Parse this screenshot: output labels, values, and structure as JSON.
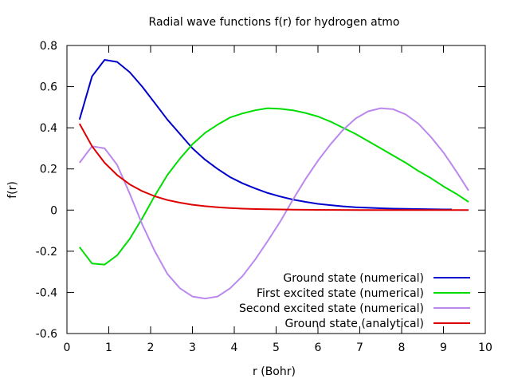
{
  "chart_data": {
    "type": "line",
    "title": "Radial wave functions f(r) for hydrogen atmo",
    "xlabel": "r (Bohr)",
    "ylabel": "f(r)",
    "xlim": [
      0,
      10
    ],
    "ylim": [
      -0.6,
      0.8
    ],
    "x_ticks": [
      "0",
      "1",
      "2",
      "3",
      "4",
      "5",
      "6",
      "7",
      "8",
      "9",
      "10"
    ],
    "y_ticks": [
      "-0.6",
      "-0.4",
      "-0.2",
      "0",
      "0.2",
      "0.4",
      "0.6",
      "0.8"
    ],
    "grid": false,
    "legend_position": "bottom-right",
    "series": [
      {
        "name": "Ground state (numerical)",
        "color": "#0000cc",
        "x": [
          0.3,
          0.6,
          0.9,
          1.2,
          1.5,
          1.8,
          2.1,
          2.4,
          2.7,
          3.0,
          3.3,
          3.6,
          3.9,
          4.2,
          4.5,
          4.8,
          5.1,
          5.4,
          5.7,
          6.0,
          6.3,
          6.6,
          6.9,
          7.2,
          7.5,
          7.8,
          8.1,
          8.4,
          8.7,
          9.0,
          9.2
        ],
        "y": [
          0.44,
          0.65,
          0.73,
          0.72,
          0.67,
          0.6,
          0.52,
          0.44,
          0.37,
          0.3,
          0.245,
          0.2,
          0.16,
          0.13,
          0.105,
          0.083,
          0.066,
          0.051,
          0.04,
          0.03,
          0.024,
          0.018,
          0.014,
          0.011,
          0.009,
          0.007,
          0.006,
          0.005,
          0.004,
          0.003,
          0.003
        ]
      },
      {
        "name": "First excited state (numerical)",
        "color": "#00dd00",
        "x": [
          0.3,
          0.6,
          0.9,
          1.2,
          1.5,
          1.8,
          2.1,
          2.4,
          2.7,
          3.0,
          3.3,
          3.6,
          3.9,
          4.2,
          4.5,
          4.8,
          5.1,
          5.4,
          5.7,
          6.0,
          6.3,
          6.6,
          6.9,
          7.2,
          7.5,
          7.8,
          8.1,
          8.4,
          8.7,
          9.0,
          9.3,
          9.6
        ],
        "y": [
          -0.18,
          -0.26,
          -0.265,
          -0.22,
          -0.14,
          -0.04,
          0.07,
          0.17,
          0.25,
          0.32,
          0.375,
          0.415,
          0.45,
          0.47,
          0.485,
          0.495,
          0.492,
          0.485,
          0.472,
          0.455,
          0.43,
          0.4,
          0.37,
          0.335,
          0.3,
          0.265,
          0.23,
          0.19,
          0.155,
          0.115,
          0.08,
          0.04
        ]
      },
      {
        "name": "Second excited state (numerical)",
        "color": "#bb88ee",
        "x": [
          0.3,
          0.6,
          0.9,
          1.2,
          1.5,
          1.8,
          2.1,
          2.4,
          2.7,
          3.0,
          3.3,
          3.6,
          3.9,
          4.2,
          4.5,
          4.8,
          5.1,
          5.4,
          5.7,
          6.0,
          6.3,
          6.6,
          6.9,
          7.2,
          7.5,
          7.8,
          8.1,
          8.4,
          8.7,
          9.0,
          9.3,
          9.6
        ],
        "y": [
          0.23,
          0.31,
          0.3,
          0.22,
          0.08,
          -0.07,
          -0.2,
          -0.31,
          -0.38,
          -0.42,
          -0.43,
          -0.42,
          -0.38,
          -0.32,
          -0.24,
          -0.15,
          -0.055,
          0.05,
          0.15,
          0.24,
          0.32,
          0.39,
          0.445,
          0.48,
          0.495,
          0.49,
          0.465,
          0.42,
          0.355,
          0.28,
          0.19,
          0.095
        ]
      },
      {
        "name": "Ground state (analytical)",
        "color": "#dd0000",
        "x": [
          0.3,
          0.6,
          0.9,
          1.2,
          1.5,
          1.8,
          2.1,
          2.4,
          2.7,
          3.0,
          3.3,
          3.6,
          3.9,
          4.2,
          4.5,
          4.8,
          5.1,
          5.4,
          5.7,
          6.0,
          6.5,
          7.0,
          7.5,
          8.0,
          8.5,
          9.0,
          9.6
        ],
        "y": [
          0.42,
          0.31,
          0.23,
          0.17,
          0.125,
          0.092,
          0.067,
          0.049,
          0.036,
          0.026,
          0.019,
          0.014,
          0.01,
          0.007,
          0.005,
          0.004,
          0.003,
          0.002,
          0.0015,
          0.001,
          0.0008,
          0.0005,
          0.0003,
          0.0002,
          0.0001,
          0.0001,
          0.0
        ]
      }
    ]
  }
}
